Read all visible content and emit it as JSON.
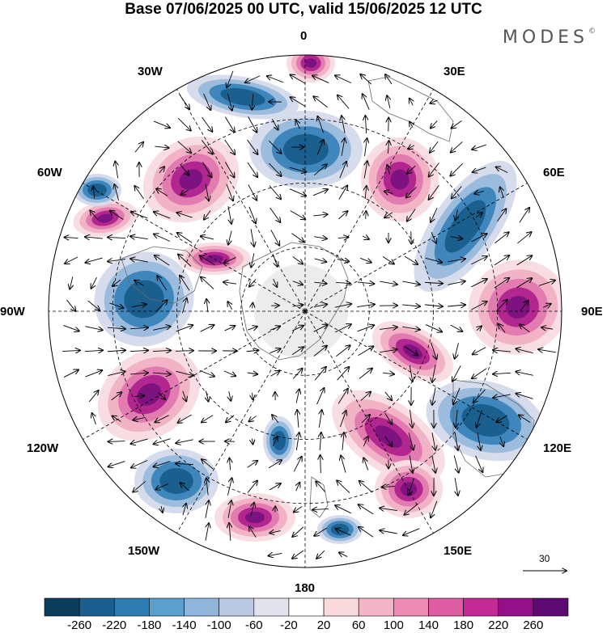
{
  "title": "Base 07/06/2025 00 UTC, valid 15/06/2025 12 UTC",
  "brand": "MODES",
  "brand_mark": "©",
  "longitude_labels": {
    "n0": "0",
    "n30e": "30E",
    "n60e": "60E",
    "n90e": "90E",
    "n120e": "120E",
    "n150e": "150E",
    "n180": "180",
    "n150w": "150W",
    "n120w": "120W",
    "n90w": "90W",
    "n60w": "60W",
    "n30w": "30W"
  },
  "reference_vector": {
    "label": "30"
  },
  "colorbar": {
    "colors": [
      "#0d3d5c",
      "#1c5f8e",
      "#2d7db3",
      "#5d9fcc",
      "#8fb6da",
      "#bcc9e3",
      "#e3e3f0",
      "#ffffff",
      "#f9d9dc",
      "#f3b6c6",
      "#ec8cb3",
      "#dd5ca2",
      "#c12b93",
      "#931086",
      "#5d0a72"
    ],
    "labels": [
      "-260",
      "-220",
      "-180",
      "-140",
      "-100",
      "-60",
      "-20",
      "20",
      "60",
      "100",
      "140",
      "180",
      "220",
      "260"
    ]
  },
  "field_colors": {
    "strong_neg": "#1b5f8e",
    "mid_neg": "#3f86bd",
    "weak_neg": "#9cbcde",
    "faint_neg": "#d6dcec",
    "faint_pos": "#f8dde2",
    "weak_pos": "#f2b3c6",
    "mid_pos": "#e27bb0",
    "strong_pos": "#b2268f",
    "core_pos": "#7e1280"
  }
}
